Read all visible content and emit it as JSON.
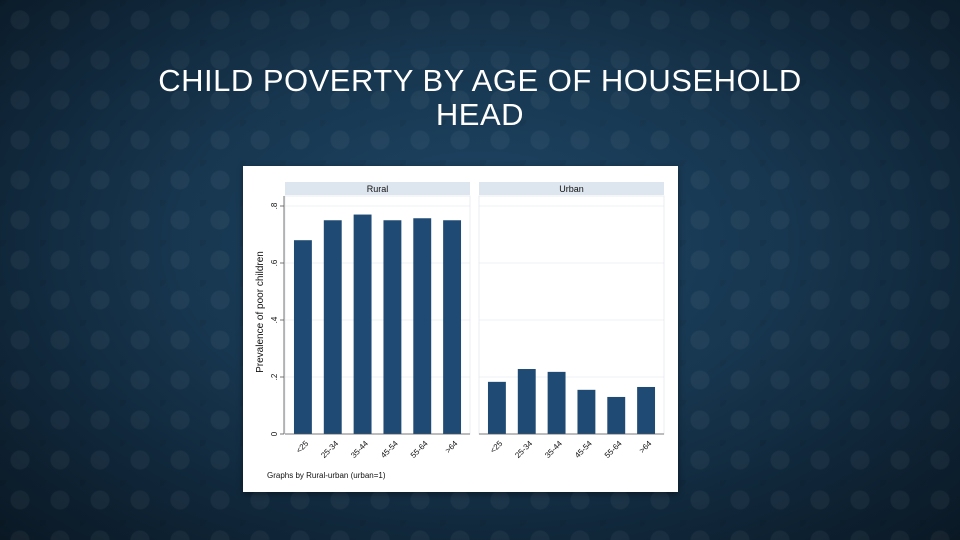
{
  "slide": {
    "title_line1": "CHILD POVERTY BY AGE OF HOUSEHOLD",
    "title_line2": "HEAD"
  },
  "chart_data": {
    "type": "bar",
    "ylabel": "Prevalence of poor children",
    "ylim": [
      0,
      0.8
    ],
    "yticks": [
      0,
      0.2,
      0.4,
      0.6,
      0.8
    ],
    "ytick_labels": [
      "0",
      ".2",
      ".4",
      ".6",
      ".8"
    ],
    "categories": [
      "<25",
      "25-34",
      "35-44",
      "45-54",
      "55-64",
      ">64"
    ],
    "panels": [
      {
        "name": "Rural",
        "values": [
          0.68,
          0.75,
          0.77,
          0.75,
          0.757,
          0.75
        ]
      },
      {
        "name": "Urban",
        "values": [
          0.183,
          0.228,
          0.218,
          0.155,
          0.13,
          0.165
        ]
      }
    ],
    "note": "Graphs by Rural-urban (urban=1)",
    "grid": true,
    "bar_color": "#1e4a73",
    "panel_header_color": "#dde6ef"
  }
}
